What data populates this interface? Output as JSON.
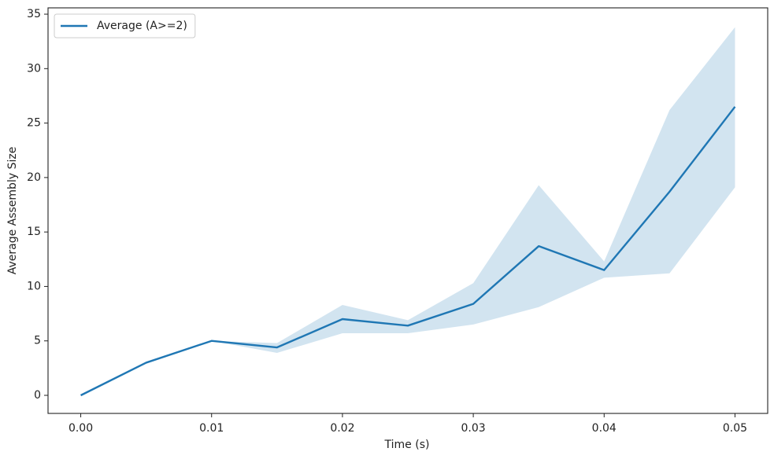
{
  "chart_data": {
    "type": "line",
    "xlabel": "Time (s)",
    "ylabel": "Average Assembly Size",
    "x": [
      0,
      0.005,
      0.01,
      0.015,
      0.02,
      0.025,
      0.03,
      0.035,
      0.04,
      0.045,
      0.05
    ],
    "series": [
      {
        "name": "Average (A>=2)",
        "color": "#1f77b4",
        "values": [
          0,
          3.0,
          5.0,
          4.4,
          7.0,
          6.4,
          8.4,
          13.7,
          11.5,
          18.7,
          26.5
        ],
        "lower": [
          0,
          3.0,
          5.0,
          3.9,
          5.7,
          5.7,
          6.5,
          8.1,
          10.8,
          11.2,
          19.1
        ],
        "upper": [
          0,
          3.0,
          5.0,
          4.8,
          8.3,
          6.9,
          10.3,
          19.3,
          12.3,
          26.2,
          33.8
        ]
      }
    ],
    "xlim": [
      -0.0025,
      0.0525
    ],
    "ylim": [
      -1.66,
      35.58
    ],
    "xticks": [
      {
        "value": 0,
        "label": "0.00"
      },
      0.01,
      0.02,
      0.03,
      0.04,
      0.05
    ],
    "yticks": [
      0,
      5,
      10,
      15,
      20,
      25,
      30,
      35
    ],
    "legend": "upper-left",
    "grid": false
  }
}
